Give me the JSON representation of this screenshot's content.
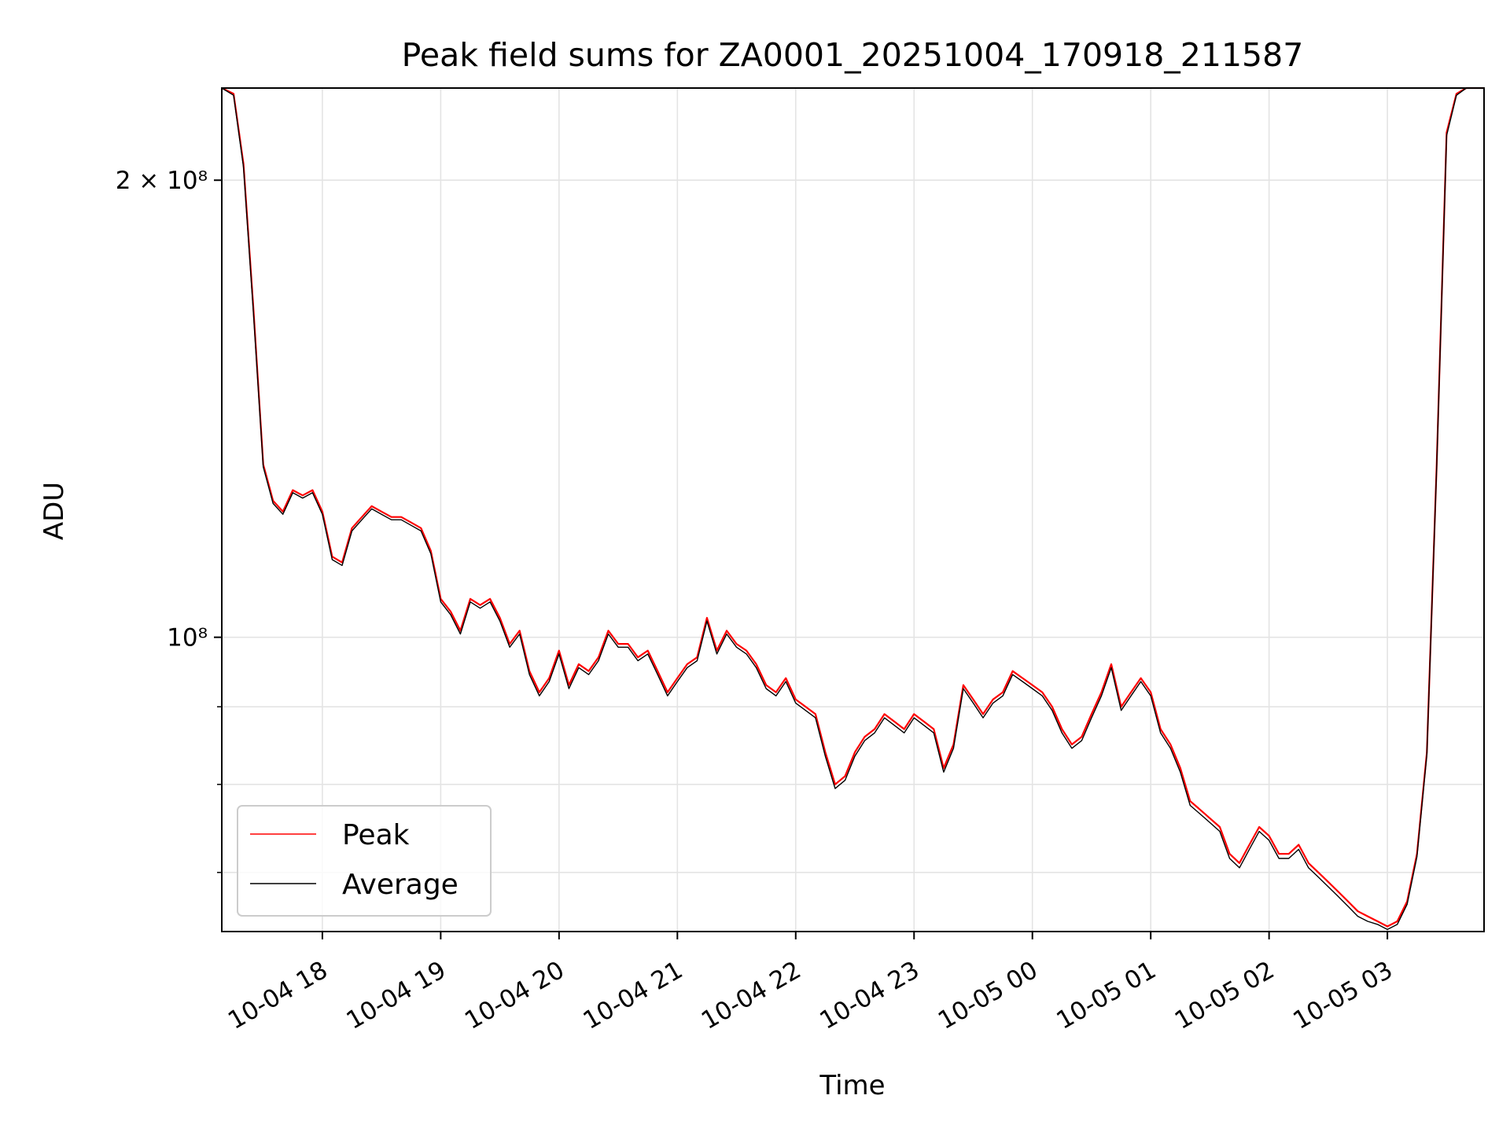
{
  "chart_data": {
    "type": "line",
    "title": "Peak field sums for ZA0001_20251004_170918_211587",
    "xlabel": "Time",
    "ylabel": "ADU",
    "y_scale": "log",
    "grid": true,
    "legend": {
      "placement": "lower-left",
      "entries": [
        "Peak",
        "Average"
      ]
    },
    "x_tick_labels": [
      "10-04 18",
      "10-04 19",
      "10-04 20",
      "10-04 21",
      "10-04 22",
      "10-04 23",
      "10-05 00",
      "10-05 01",
      "10-05 02",
      "10-05 03"
    ],
    "y_tick_labels": [
      "2 × 10⁸",
      "10⁸"
    ],
    "x_range": [
      "2025-10-04 17:09",
      "2025-10-05 03:49"
    ],
    "ylim": [
      64000000,
      230000000
    ],
    "series": [
      {
        "name": "Peak",
        "color": "#ff0000",
        "x": [
          "2025-10-04 17:09",
          "2025-10-04 17:15",
          "2025-10-04 17:20",
          "2025-10-04 17:25",
          "2025-10-04 17:30",
          "2025-10-04 17:35",
          "2025-10-04 17:40",
          "2025-10-04 17:45",
          "2025-10-04 17:50",
          "2025-10-04 17:55",
          "2025-10-04 18:00",
          "2025-10-04 18:05",
          "2025-10-04 18:10",
          "2025-10-04 18:15",
          "2025-10-04 18:20",
          "2025-10-04 18:25",
          "2025-10-04 18:30",
          "2025-10-04 18:35",
          "2025-10-04 18:40",
          "2025-10-04 18:45",
          "2025-10-04 18:50",
          "2025-10-04 18:55",
          "2025-10-04 19:00",
          "2025-10-04 19:05",
          "2025-10-04 19:10",
          "2025-10-04 19:15",
          "2025-10-04 19:20",
          "2025-10-04 19:25",
          "2025-10-04 19:30",
          "2025-10-04 19:35",
          "2025-10-04 19:40",
          "2025-10-04 19:45",
          "2025-10-04 19:50",
          "2025-10-04 19:55",
          "2025-10-04 20:00",
          "2025-10-04 20:05",
          "2025-10-04 20:10",
          "2025-10-04 20:15",
          "2025-10-04 20:20",
          "2025-10-04 20:25",
          "2025-10-04 20:30",
          "2025-10-04 20:35",
          "2025-10-04 20:40",
          "2025-10-04 20:45",
          "2025-10-04 20:50",
          "2025-10-04 20:55",
          "2025-10-04 21:00",
          "2025-10-04 21:05",
          "2025-10-04 21:10",
          "2025-10-04 21:15",
          "2025-10-04 21:20",
          "2025-10-04 21:25",
          "2025-10-04 21:30",
          "2025-10-04 21:35",
          "2025-10-04 21:40",
          "2025-10-04 21:45",
          "2025-10-04 21:50",
          "2025-10-04 21:55",
          "2025-10-04 22:00",
          "2025-10-04 22:05",
          "2025-10-04 22:10",
          "2025-10-04 22:15",
          "2025-10-04 22:20",
          "2025-10-04 22:25",
          "2025-10-04 22:30",
          "2025-10-04 22:35",
          "2025-10-04 22:40",
          "2025-10-04 22:45",
          "2025-10-04 22:50",
          "2025-10-04 22:55",
          "2025-10-04 23:00",
          "2025-10-04 23:05",
          "2025-10-04 23:10",
          "2025-10-04 23:15",
          "2025-10-04 23:20",
          "2025-10-04 23:25",
          "2025-10-04 23:30",
          "2025-10-04 23:35",
          "2025-10-04 23:40",
          "2025-10-04 23:45",
          "2025-10-04 23:50",
          "2025-10-04 23:55",
          "2025-10-05 00:00",
          "2025-10-05 00:05",
          "2025-10-05 00:10",
          "2025-10-05 00:15",
          "2025-10-05 00:20",
          "2025-10-05 00:25",
          "2025-10-05 00:30",
          "2025-10-05 00:35",
          "2025-10-05 00:40",
          "2025-10-05 00:45",
          "2025-10-05 00:50",
          "2025-10-05 00:55",
          "2025-10-05 01:00",
          "2025-10-05 01:05",
          "2025-10-05 01:10",
          "2025-10-05 01:15",
          "2025-10-05 01:20",
          "2025-10-05 01:25",
          "2025-10-05 01:30",
          "2025-10-05 01:35",
          "2025-10-05 01:40",
          "2025-10-05 01:45",
          "2025-10-05 01:50",
          "2025-10-05 01:55",
          "2025-10-05 02:00",
          "2025-10-05 02:05",
          "2025-10-05 02:10",
          "2025-10-05 02:15",
          "2025-10-05 02:20",
          "2025-10-05 02:25",
          "2025-10-05 02:30",
          "2025-10-05 02:35",
          "2025-10-05 02:40",
          "2025-10-05 02:45",
          "2025-10-05 02:50",
          "2025-10-05 02:55",
          "2025-10-05 03:00",
          "2025-10-05 03:05",
          "2025-10-05 03:10",
          "2025-10-05 03:15",
          "2025-10-05 03:20",
          "2025-10-05 03:25",
          "2025-10-05 03:30",
          "2025-10-05 03:35",
          "2025-10-05 03:40",
          "2025-10-05 03:45",
          "2025-10-05 03:49"
        ],
        "values": [
          230000000,
          228000000,
          205000000,
          165000000,
          130000000,
          123000000,
          121000000,
          125000000,
          124000000,
          125000000,
          121000000,
          113000000,
          112000000,
          118000000,
          120000000,
          122000000,
          121000000,
          120000000,
          120000000,
          119000000,
          118000000,
          114000000,
          106000000,
          104000000,
          101000000,
          106000000,
          105000000,
          106000000,
          103000000,
          99000000,
          101000000,
          95000000,
          92000000,
          94000000,
          98000000,
          93000000,
          96000000,
          95000000,
          97000000,
          101000000,
          99000000,
          99000000,
          97000000,
          98000000,
          95000000,
          92000000,
          94000000,
          96000000,
          97000000,
          103000000,
          98000000,
          101000000,
          99000000,
          98000000,
          96000000,
          93000000,
          92000000,
          94000000,
          91000000,
          90000000,
          89000000,
          84000000,
          80000000,
          81000000,
          84000000,
          86000000,
          87000000,
          89000000,
          88000000,
          87000000,
          89000000,
          88000000,
          87000000,
          82000000,
          85000000,
          93000000,
          91000000,
          89000000,
          91000000,
          92000000,
          95000000,
          94000000,
          93000000,
          92000000,
          90000000,
          87000000,
          85000000,
          86000000,
          89000000,
          92000000,
          96000000,
          90000000,
          92000000,
          94000000,
          92000000,
          87000000,
          85000000,
          82000000,
          78000000,
          77000000,
          76000000,
          75000000,
          72000000,
          71000000,
          73000000,
          75000000,
          74000000,
          72000000,
          72000000,
          73000000,
          71000000,
          70000000,
          69000000,
          68000000,
          67000000,
          66000000,
          65500000,
          65000000,
          64500000,
          65000000,
          67000000,
          72000000,
          84000000,
          130000000,
          215000000,
          228000000,
          230000000,
          230000000,
          230000000
        ]
      },
      {
        "name": "Average",
        "color": "#000000",
        "x": [
          "2025-10-04 17:09",
          "2025-10-04 17:15",
          "2025-10-04 17:20",
          "2025-10-04 17:25",
          "2025-10-04 17:30",
          "2025-10-04 17:35",
          "2025-10-04 17:40",
          "2025-10-04 17:45",
          "2025-10-04 17:50",
          "2025-10-04 17:55",
          "2025-10-04 18:00",
          "2025-10-04 18:05",
          "2025-10-04 18:10",
          "2025-10-04 18:15",
          "2025-10-04 18:20",
          "2025-10-04 18:25",
          "2025-10-04 18:30",
          "2025-10-04 18:35",
          "2025-10-04 18:40",
          "2025-10-04 18:45",
          "2025-10-04 18:50",
          "2025-10-04 18:55",
          "2025-10-04 19:00",
          "2025-10-04 19:05",
          "2025-10-04 19:10",
          "2025-10-04 19:15",
          "2025-10-04 19:20",
          "2025-10-04 19:25",
          "2025-10-04 19:30",
          "2025-10-04 19:35",
          "2025-10-04 19:40",
          "2025-10-04 19:45",
          "2025-10-04 19:50",
          "2025-10-04 19:55",
          "2025-10-04 20:00",
          "2025-10-04 20:05",
          "2025-10-04 20:10",
          "2025-10-04 20:15",
          "2025-10-04 20:20",
          "2025-10-04 20:25",
          "2025-10-04 20:30",
          "2025-10-04 20:35",
          "2025-10-04 20:40",
          "2025-10-04 20:45",
          "2025-10-04 20:50",
          "2025-10-04 20:55",
          "2025-10-04 21:00",
          "2025-10-04 21:05",
          "2025-10-04 21:10",
          "2025-10-04 21:15",
          "2025-10-04 21:20",
          "2025-10-04 21:25",
          "2025-10-04 21:30",
          "2025-10-04 21:35",
          "2025-10-04 21:40",
          "2025-10-04 21:45",
          "2025-10-04 21:50",
          "2025-10-04 21:55",
          "2025-10-04 22:00",
          "2025-10-04 22:05",
          "2025-10-04 22:10",
          "2025-10-04 22:15",
          "2025-10-04 22:20",
          "2025-10-04 22:25",
          "2025-10-04 22:30",
          "2025-10-04 22:35",
          "2025-10-04 22:40",
          "2025-10-04 22:45",
          "2025-10-04 22:50",
          "2025-10-04 22:55",
          "2025-10-04 23:00",
          "2025-10-04 23:05",
          "2025-10-04 23:10",
          "2025-10-04 23:15",
          "2025-10-04 23:20",
          "2025-10-04 23:25",
          "2025-10-04 23:30",
          "2025-10-04 23:35",
          "2025-10-04 23:40",
          "2025-10-04 23:45",
          "2025-10-04 23:50",
          "2025-10-04 23:55",
          "2025-10-05 00:00",
          "2025-10-05 00:05",
          "2025-10-05 00:10",
          "2025-10-05 00:15",
          "2025-10-05 00:20",
          "2025-10-05 00:25",
          "2025-10-05 00:30",
          "2025-10-05 00:35",
          "2025-10-05 00:40",
          "2025-10-05 00:45",
          "2025-10-05 00:50",
          "2025-10-05 00:55",
          "2025-10-05 01:00",
          "2025-10-05 01:05",
          "2025-10-05 01:10",
          "2025-10-05 01:15",
          "2025-10-05 01:20",
          "2025-10-05 01:25",
          "2025-10-05 01:30",
          "2025-10-05 01:35",
          "2025-10-05 01:40",
          "2025-10-05 01:45",
          "2025-10-05 01:50",
          "2025-10-05 01:55",
          "2025-10-05 02:00",
          "2025-10-05 02:05",
          "2025-10-05 02:10",
          "2025-10-05 02:15",
          "2025-10-05 02:20",
          "2025-10-05 02:25",
          "2025-10-05 02:30",
          "2025-10-05 02:35",
          "2025-10-05 02:40",
          "2025-10-05 02:45",
          "2025-10-05 02:50",
          "2025-10-05 02:55",
          "2025-10-05 03:00",
          "2025-10-05 03:05",
          "2025-10-05 03:10",
          "2025-10-05 03:15",
          "2025-10-05 03:20",
          "2025-10-05 03:25",
          "2025-10-05 03:30",
          "2025-10-05 03:35",
          "2025-10-05 03:40",
          "2025-10-05 03:45",
          "2025-10-05 03:49"
        ],
        "values": [
          230000000,
          227500000,
          204000000,
          164000000,
          129500000,
          122500000,
          120500000,
          124500000,
          123500000,
          124500000,
          120500000,
          112500000,
          111500000,
          117500000,
          119500000,
          121500000,
          120500000,
          119500000,
          119500000,
          118500000,
          117500000,
          113500000,
          105500000,
          103500000,
          100500000,
          105500000,
          104500000,
          105500000,
          102500000,
          98500000,
          100500000,
          94500000,
          91500000,
          93500000,
          97500000,
          92500000,
          95500000,
          94500000,
          96500000,
          100500000,
          98500000,
          98500000,
          96500000,
          97500000,
          94500000,
          91500000,
          93500000,
          95500000,
          96500000,
          102500000,
          97500000,
          100500000,
          98500000,
          97500000,
          95500000,
          92500000,
          91500000,
          93500000,
          90500000,
          89500000,
          88500000,
          83500000,
          79500000,
          80500000,
          83500000,
          85500000,
          86500000,
          88500000,
          87500000,
          86500000,
          88500000,
          87500000,
          86500000,
          81500000,
          84500000,
          92500000,
          90500000,
          88500000,
          90500000,
          91500000,
          94500000,
          93500000,
          92500000,
          91500000,
          89500000,
          86500000,
          84500000,
          85500000,
          88500000,
          91500000,
          95500000,
          89500000,
          91500000,
          93500000,
          91500000,
          86500000,
          84500000,
          81500000,
          77500000,
          76500000,
          75500000,
          74500000,
          71500000,
          70500000,
          72500000,
          74500000,
          73500000,
          71500000,
          71500000,
          72500000,
          70500000,
          69500000,
          68500000,
          67500000,
          66500000,
          65500000,
          65000000,
          64700000,
          64200000,
          64700000,
          66700000,
          71700000,
          83700000,
          129500000,
          214000000,
          227500000,
          230000000,
          230000000,
          230000000
        ]
      }
    ]
  }
}
